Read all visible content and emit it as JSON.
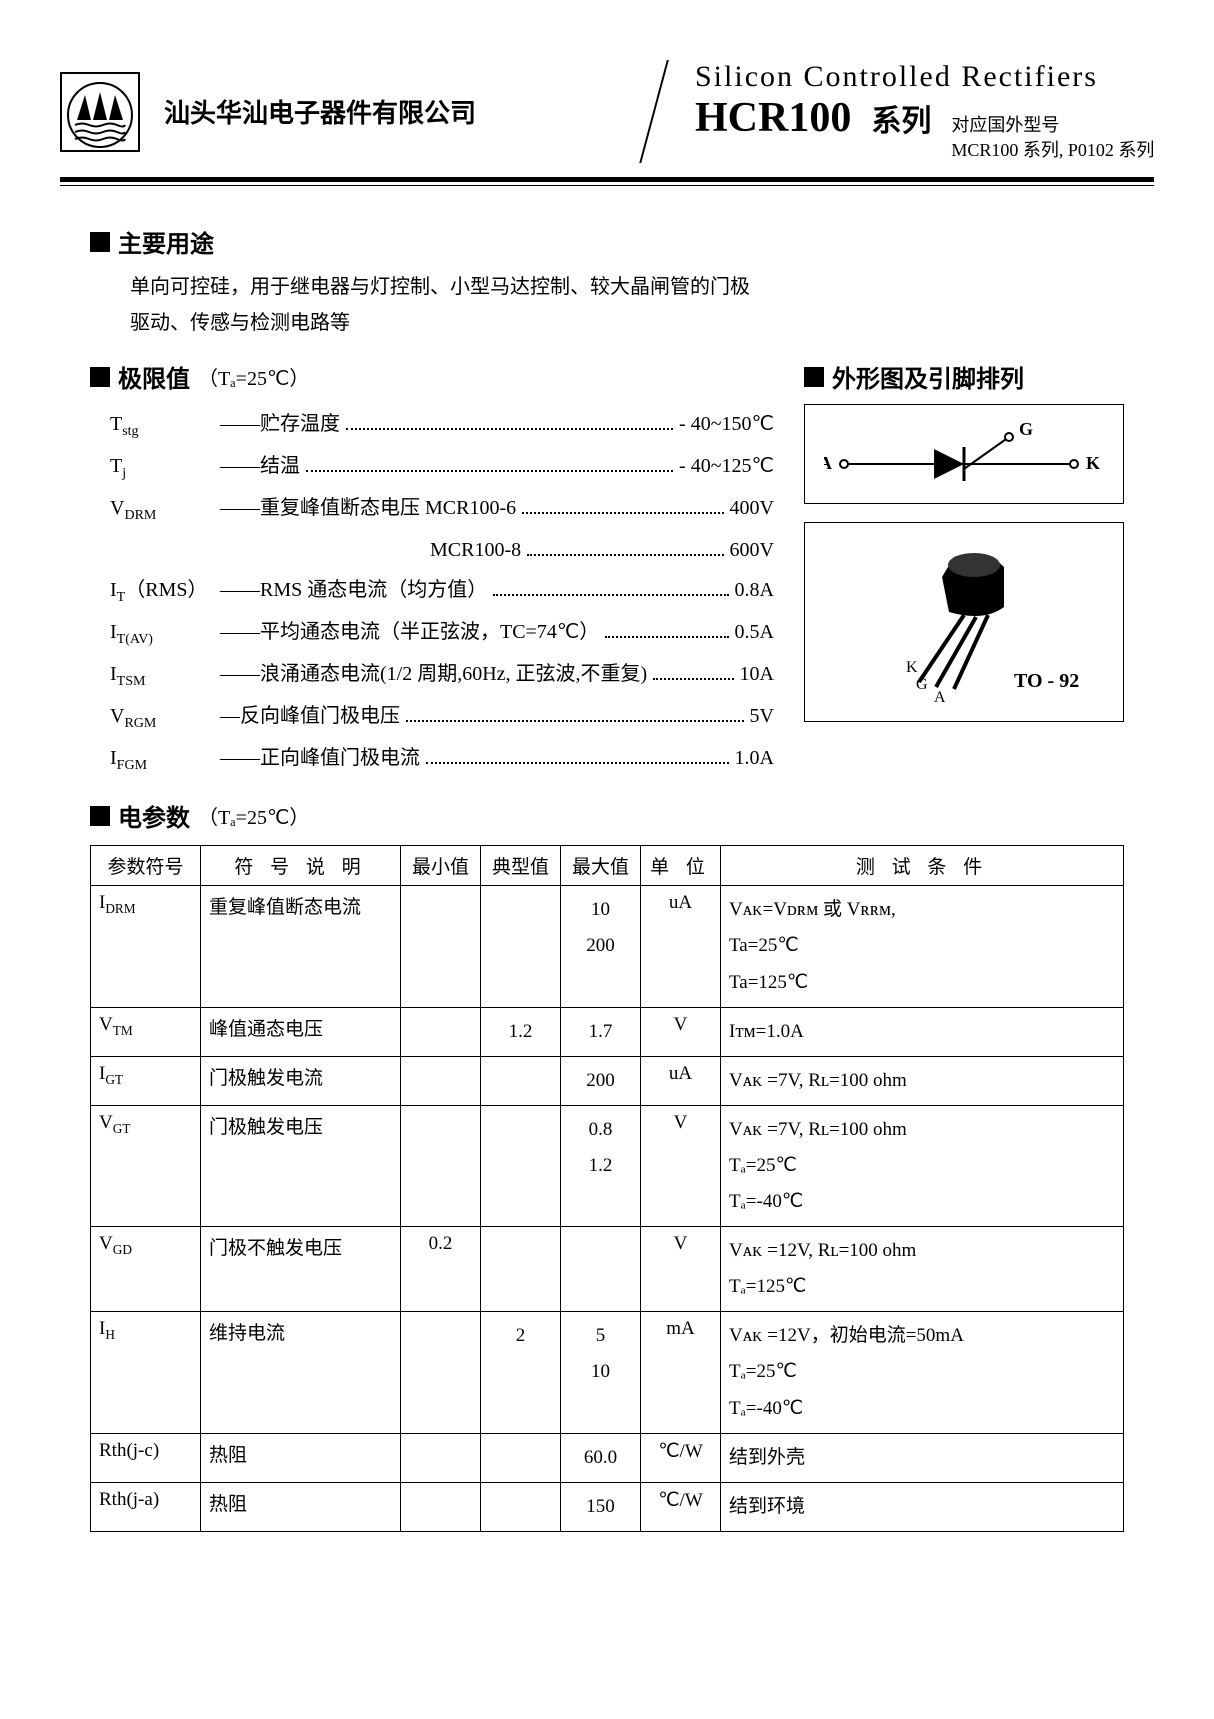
{
  "header": {
    "company": "汕头华汕电子器件有限公司",
    "eng_title": "Silicon   Controlled   Rectifiers",
    "series": "HCR100",
    "series_suffix": "系列",
    "equiv_label": "对应国外型号",
    "equiv_models": "MCR100 系列, P0102 系列"
  },
  "sections": {
    "usage_title": "主要用途",
    "usage_body1": "单向可控硅，用于继电器与灯控制、小型马达控制、较大晶闸管的门极",
    "usage_body2": "驱动、传感与检测电路等",
    "limits_title": "极限值",
    "limits_cond": "（Tₐ=25℃）",
    "outline_title": "外形图及引脚排列",
    "elec_title": "电参数",
    "elec_cond": "（Tₐ=25℃）"
  },
  "limits": [
    {
      "sym": "T",
      "sub": "stg",
      "desc": "——贮存温度",
      "val": "- 40~150℃"
    },
    {
      "sym": "T",
      "sub": "j",
      "desc": "——结温",
      "val": "- 40~125℃"
    },
    {
      "sym": "V",
      "sub": "DRM",
      "desc": "——重复峰值断态电压   MCR100-6",
      "val": "400V"
    },
    {
      "sym": "",
      "sub": "",
      "desc": "MCR100-8",
      "val": "600V",
      "indent": true
    },
    {
      "sym": "I",
      "sub": "T",
      "paren": "（RMS）",
      "desc": "——RMS 通态电流（均方值）",
      "val": "0.8A"
    },
    {
      "sym": "I",
      "sub": "T(AV)",
      "desc": "——平均通态电流（半正弦波，TC=74℃）",
      "val": "0.5A"
    },
    {
      "sym": "I",
      "sub": "TSM",
      "desc": "——浪涌通态电流(1/2 周期,60Hz, 正弦波,不重复)",
      "val": "10A"
    },
    {
      "sym": "V",
      "sub": "RGM",
      "desc": "—反向峰值门极电压",
      "val": "5V"
    },
    {
      "sym": "I",
      "sub": "FGM",
      "desc": "——正向峰值门极电流",
      "val": "1.0A"
    }
  ],
  "package": {
    "label": "TO - 92",
    "pins": [
      "K",
      "G",
      "A"
    ],
    "sym_pins": [
      "A",
      "G",
      "K"
    ]
  },
  "table": {
    "headers": [
      "参数符号",
      "符 号 说 明",
      "最小值",
      "典型值",
      "最大值",
      "单 位",
      "测 试 条 件"
    ],
    "rows": [
      {
        "sym": "I",
        "sub": "DRM",
        "name": "重复峰值断态电流",
        "min": "",
        "typ": "",
        "max": "10\n200",
        "unit": "uA",
        "cond": "Vᴀᴋ=Vᴅʀᴍ 或 Vʀʀᴍ,\nTa=25℃\nTa=125℃"
      },
      {
        "sym": "V",
        "sub": "TM",
        "name": "峰值通态电压",
        "min": "",
        "typ": "1.2",
        "max": "1.7",
        "unit": "V",
        "cond": "Iᴛᴍ=1.0A"
      },
      {
        "sym": "I",
        "sub": "GT",
        "name": "门极触发电流",
        "min": "",
        "typ": "",
        "max": "200",
        "unit": "uA",
        "cond": "Vᴀᴋ =7V, Rʟ=100 ohm"
      },
      {
        "sym": "V",
        "sub": "GT",
        "name": "门极触发电压",
        "min": "",
        "typ": "",
        "max": "0.8\n1.2",
        "unit": "V",
        "cond": "Vᴀᴋ =7V, Rʟ=100 ohm\nTₐ=25℃\nTₐ=-40℃"
      },
      {
        "sym": "V",
        "sub": "GD",
        "name": "门极不触发电压",
        "min": "0.2",
        "typ": "",
        "max": "",
        "unit": "V",
        "cond": "Vᴀᴋ =12V, Rʟ=100 ohm\nTₐ=125℃"
      },
      {
        "sym": "I",
        "sub": "H",
        "name": "维持电流",
        "min": "",
        "typ": "2",
        "max": "5\n10",
        "unit": "mA",
        "cond": "Vᴀᴋ =12V，初始电流=50mA\nTₐ=25℃\nTₐ=-40℃"
      },
      {
        "sym": "Rth(j-c)",
        "sub": "",
        "name": "热阻",
        "min": "",
        "typ": "",
        "max": "60.0",
        "unit": "℃/W",
        "cond": "结到外壳"
      },
      {
        "sym": "Rth(j-a)",
        "sub": "",
        "name": "热阻",
        "min": "",
        "typ": "",
        "max": "150",
        "unit": "℃/W",
        "cond": "结到环境"
      }
    ]
  }
}
